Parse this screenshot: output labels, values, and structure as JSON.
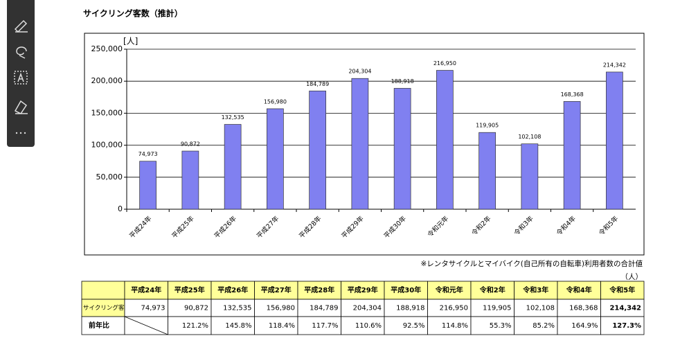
{
  "chart_data": {
    "type": "bar",
    "title": "サイクリング客数（推計）",
    "y_label": "[人]",
    "categories": [
      "平成24年",
      "平成25年",
      "平成26年",
      "平成27年",
      "平成28年",
      "平成29年",
      "平成30年",
      "令和元年",
      "令和2年",
      "令和3年",
      "令和4年",
      "令和5年"
    ],
    "values": [
      74973,
      90872,
      132535,
      156980,
      184789,
      204304,
      188918,
      216950,
      119905,
      102108,
      168368,
      214342
    ],
    "value_labels": [
      "74,973",
      "90,872",
      "132,535",
      "156,980",
      "184,789",
      "204,304",
      "188,918",
      "216,950",
      "119,905",
      "102,108",
      "168,368",
      "214,342"
    ],
    "color": "#8080f0",
    "ylim": [
      0,
      250000
    ],
    "yticks": [
      0,
      {
        "value": 50000,
        "label": "50,000"
      },
      {
        "value": 100000,
        "label": "100,000"
      },
      {
        "value": 150000,
        "label": "150,000"
      },
      {
        "value": 200000,
        "label": "200,000"
      },
      {
        "value": 250000,
        "label": "250,000"
      }
    ],
    "grid": true,
    "note": "※レンタサイクルとマイバイク(自己所有の自転車)利用者数の合計値"
  },
  "table": {
    "unit": "（人）",
    "row_labels": [
      "サイクリング客",
      "前年比"
    ],
    "yoy": [
      "121.2%",
      "145.8%",
      "118.4%",
      "117.7%",
      "110.6%",
      "92.5%",
      "114.8%",
      "55.3%",
      "85.2%",
      "164.9%",
      "127.3%"
    ]
  }
}
